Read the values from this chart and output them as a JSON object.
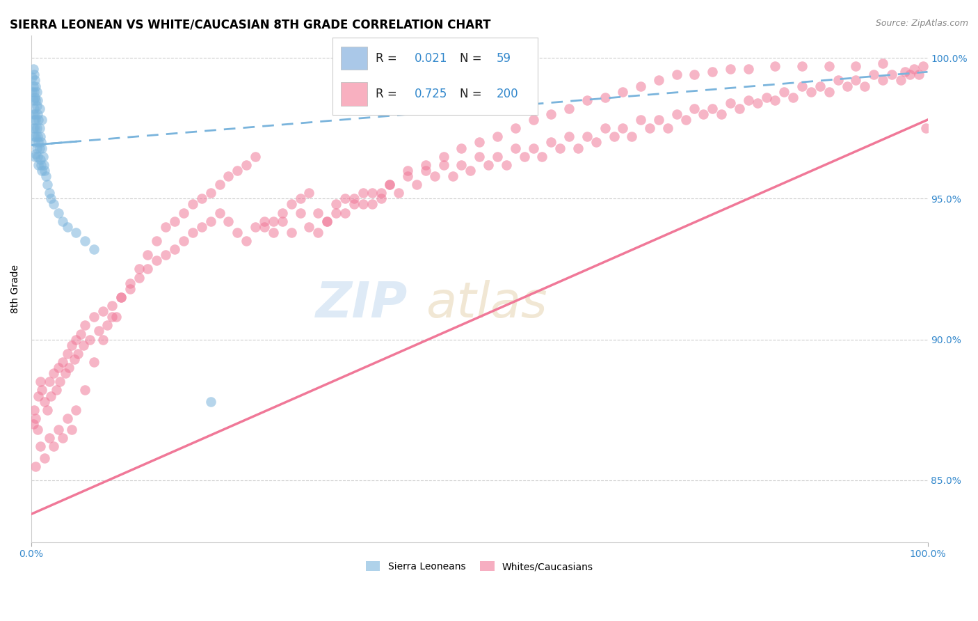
{
  "title": "SIERRA LEONEAN VS WHITE/CAUCASIAN 8TH GRADE CORRELATION CHART",
  "source": "Source: ZipAtlas.com",
  "ylabel": "8th Grade",
  "xlim": [
    0.0,
    1.0
  ],
  "ylim": [
    0.828,
    1.008
  ],
  "yticks": [
    0.85,
    0.9,
    0.95,
    1.0
  ],
  "ytick_labels": [
    "85.0%",
    "90.0%",
    "95.0%",
    "100.0%"
  ],
  "blue_color": "#7ab4dc",
  "pink_color": "#f07898",
  "title_fontsize": 12,
  "source_fontsize": 9,
  "blue_trend_start_x": 0.0,
  "blue_trend_end_x": 1.0,
  "blue_trend_start_y": 0.969,
  "blue_trend_end_y": 0.995,
  "pink_trend_start_x": 0.0,
  "pink_trend_end_x": 1.0,
  "pink_trend_start_y": 0.838,
  "pink_trend_end_y": 0.978,
  "blue_x": [
    0.001,
    0.001,
    0.002,
    0.002,
    0.002,
    0.002,
    0.003,
    0.003,
    0.003,
    0.003,
    0.004,
    0.004,
    0.004,
    0.004,
    0.004,
    0.005,
    0.005,
    0.005,
    0.005,
    0.006,
    0.006,
    0.006,
    0.007,
    0.007,
    0.007,
    0.008,
    0.008,
    0.008,
    0.009,
    0.009,
    0.01,
    0.01,
    0.011,
    0.011,
    0.012,
    0.012,
    0.013,
    0.014,
    0.015,
    0.016,
    0.018,
    0.02,
    0.022,
    0.025,
    0.03,
    0.035,
    0.04,
    0.05,
    0.06,
    0.07,
    0.002,
    0.003,
    0.004,
    0.005,
    0.006,
    0.007,
    0.009,
    0.012,
    0.2
  ],
  "blue_y": [
    0.988,
    0.993,
    0.99,
    0.985,
    0.98,
    0.975,
    0.988,
    0.982,
    0.978,
    0.972,
    0.986,
    0.98,
    0.975,
    0.97,
    0.965,
    0.985,
    0.978,
    0.972,
    0.966,
    0.983,
    0.975,
    0.968,
    0.98,
    0.972,
    0.965,
    0.978,
    0.97,
    0.962,
    0.975,
    0.968,
    0.972,
    0.964,
    0.97,
    0.962,
    0.968,
    0.96,
    0.965,
    0.962,
    0.96,
    0.958,
    0.955,
    0.952,
    0.95,
    0.948,
    0.945,
    0.942,
    0.94,
    0.938,
    0.935,
    0.932,
    0.996,
    0.994,
    0.992,
    0.99,
    0.988,
    0.985,
    0.982,
    0.978,
    0.878
  ],
  "pink_x": [
    0.002,
    0.003,
    0.005,
    0.007,
    0.008,
    0.01,
    0.012,
    0.015,
    0.018,
    0.02,
    0.022,
    0.025,
    0.028,
    0.03,
    0.032,
    0.035,
    0.038,
    0.04,
    0.042,
    0.045,
    0.048,
    0.05,
    0.052,
    0.055,
    0.058,
    0.06,
    0.065,
    0.07,
    0.075,
    0.08,
    0.085,
    0.09,
    0.095,
    0.1,
    0.11,
    0.12,
    0.13,
    0.14,
    0.15,
    0.16,
    0.17,
    0.18,
    0.19,
    0.2,
    0.21,
    0.22,
    0.23,
    0.24,
    0.25,
    0.26,
    0.27,
    0.28,
    0.29,
    0.3,
    0.31,
    0.32,
    0.33,
    0.34,
    0.35,
    0.36,
    0.37,
    0.38,
    0.39,
    0.4,
    0.41,
    0.42,
    0.43,
    0.44,
    0.45,
    0.46,
    0.47,
    0.48,
    0.49,
    0.5,
    0.51,
    0.52,
    0.53,
    0.54,
    0.55,
    0.56,
    0.57,
    0.58,
    0.59,
    0.6,
    0.61,
    0.62,
    0.63,
    0.64,
    0.65,
    0.66,
    0.67,
    0.68,
    0.69,
    0.7,
    0.71,
    0.72,
    0.73,
    0.74,
    0.75,
    0.76,
    0.77,
    0.78,
    0.79,
    0.8,
    0.81,
    0.82,
    0.83,
    0.84,
    0.85,
    0.86,
    0.87,
    0.88,
    0.89,
    0.9,
    0.91,
    0.92,
    0.93,
    0.94,
    0.95,
    0.96,
    0.97,
    0.975,
    0.98,
    0.985,
    0.99,
    0.995,
    0.998,
    0.005,
    0.01,
    0.015,
    0.02,
    0.025,
    0.03,
    0.035,
    0.04,
    0.045,
    0.05,
    0.06,
    0.07,
    0.08,
    0.09,
    0.1,
    0.11,
    0.12,
    0.13,
    0.14,
    0.15,
    0.16,
    0.17,
    0.18,
    0.19,
    0.2,
    0.21,
    0.22,
    0.23,
    0.24,
    0.25,
    0.26,
    0.27,
    0.28,
    0.29,
    0.3,
    0.31,
    0.32,
    0.33,
    0.34,
    0.35,
    0.36,
    0.37,
    0.38,
    0.39,
    0.4,
    0.42,
    0.44,
    0.46,
    0.48,
    0.5,
    0.52,
    0.54,
    0.56,
    0.58,
    0.6,
    0.62,
    0.64,
    0.66,
    0.68,
    0.7,
    0.72,
    0.74,
    0.76,
    0.78,
    0.8,
    0.83,
    0.86,
    0.89,
    0.92,
    0.95
  ],
  "pink_y": [
    0.87,
    0.875,
    0.872,
    0.868,
    0.88,
    0.885,
    0.882,
    0.878,
    0.875,
    0.885,
    0.88,
    0.888,
    0.882,
    0.89,
    0.885,
    0.892,
    0.888,
    0.895,
    0.89,
    0.898,
    0.893,
    0.9,
    0.895,
    0.902,
    0.898,
    0.905,
    0.9,
    0.908,
    0.903,
    0.91,
    0.905,
    0.912,
    0.908,
    0.915,
    0.918,
    0.922,
    0.925,
    0.928,
    0.93,
    0.932,
    0.935,
    0.938,
    0.94,
    0.942,
    0.945,
    0.942,
    0.938,
    0.935,
    0.94,
    0.942,
    0.938,
    0.942,
    0.938,
    0.945,
    0.94,
    0.945,
    0.942,
    0.948,
    0.945,
    0.95,
    0.948,
    0.952,
    0.95,
    0.955,
    0.952,
    0.958,
    0.955,
    0.96,
    0.958,
    0.962,
    0.958,
    0.962,
    0.96,
    0.965,
    0.962,
    0.965,
    0.962,
    0.968,
    0.965,
    0.968,
    0.965,
    0.97,
    0.968,
    0.972,
    0.968,
    0.972,
    0.97,
    0.975,
    0.972,
    0.975,
    0.972,
    0.978,
    0.975,
    0.978,
    0.975,
    0.98,
    0.978,
    0.982,
    0.98,
    0.982,
    0.98,
    0.984,
    0.982,
    0.985,
    0.984,
    0.986,
    0.985,
    0.988,
    0.986,
    0.99,
    0.988,
    0.99,
    0.988,
    0.992,
    0.99,
    0.992,
    0.99,
    0.994,
    0.992,
    0.994,
    0.992,
    0.995,
    0.994,
    0.996,
    0.994,
    0.997,
    0.975,
    0.855,
    0.862,
    0.858,
    0.865,
    0.862,
    0.868,
    0.865,
    0.872,
    0.868,
    0.875,
    0.882,
    0.892,
    0.9,
    0.908,
    0.915,
    0.92,
    0.925,
    0.93,
    0.935,
    0.94,
    0.942,
    0.945,
    0.948,
    0.95,
    0.952,
    0.955,
    0.958,
    0.96,
    0.962,
    0.965,
    0.94,
    0.942,
    0.945,
    0.948,
    0.95,
    0.952,
    0.938,
    0.942,
    0.945,
    0.95,
    0.948,
    0.952,
    0.948,
    0.952,
    0.955,
    0.96,
    0.962,
    0.965,
    0.968,
    0.97,
    0.972,
    0.975,
    0.978,
    0.98,
    0.982,
    0.985,
    0.986,
    0.988,
    0.99,
    0.992,
    0.994,
    0.994,
    0.995,
    0.996,
    0.996,
    0.997,
    0.997,
    0.997,
    0.997,
    0.998
  ]
}
